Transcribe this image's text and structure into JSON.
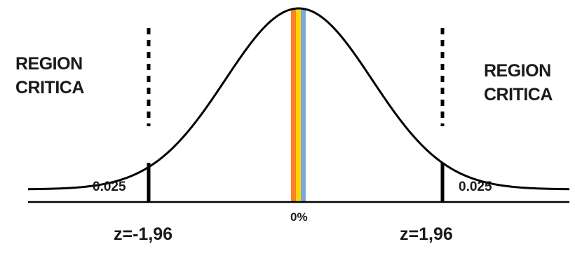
{
  "labels": {
    "left_region": [
      "REGION",
      "CRITICA"
    ],
    "right_region": [
      "REGION",
      "CRITICA"
    ],
    "left_tail_area": "0.025",
    "right_tail_area": "0.025",
    "left_z": "z=-1,96",
    "right_z": "z=1,96",
    "center_label": "0%"
  },
  "distribution": {
    "type": "normal",
    "mean": 0,
    "sd": 1,
    "x_range": [
      -3,
      3
    ],
    "critical_values": [
      -1.96,
      1.96
    ],
    "tail_probability": 0.025
  },
  "colors": {
    "curve": "#000000",
    "axis": "#000000",
    "center_band": [
      "#ff7f27",
      "#ffd700",
      "#7ea6e0"
    ]
  }
}
